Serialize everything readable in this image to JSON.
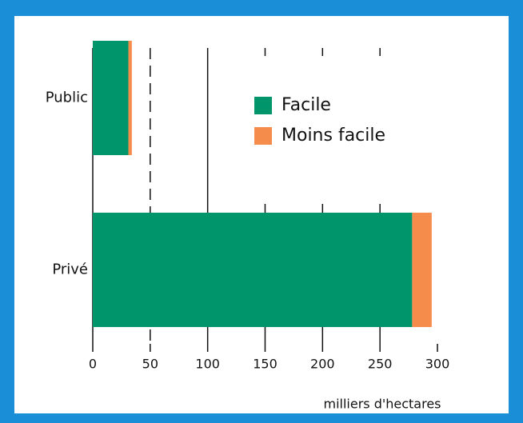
{
  "chart_data": {
    "type": "stacked_barh",
    "categories": [
      "Public",
      "Privé"
    ],
    "series": [
      {
        "name": "Facile",
        "color": "#00956a",
        "values": [
          31,
          278
        ]
      },
      {
        "name": "Moins facile",
        "color": "#f68c4b",
        "values": [
          3,
          17
        ]
      }
    ],
    "xlabel": "milliers d'hectares",
    "xlim": [
      0,
      300
    ],
    "xticks": [
      0,
      50,
      100,
      150,
      200,
      250,
      300
    ],
    "grid": true,
    "legend": "upper right"
  }
}
